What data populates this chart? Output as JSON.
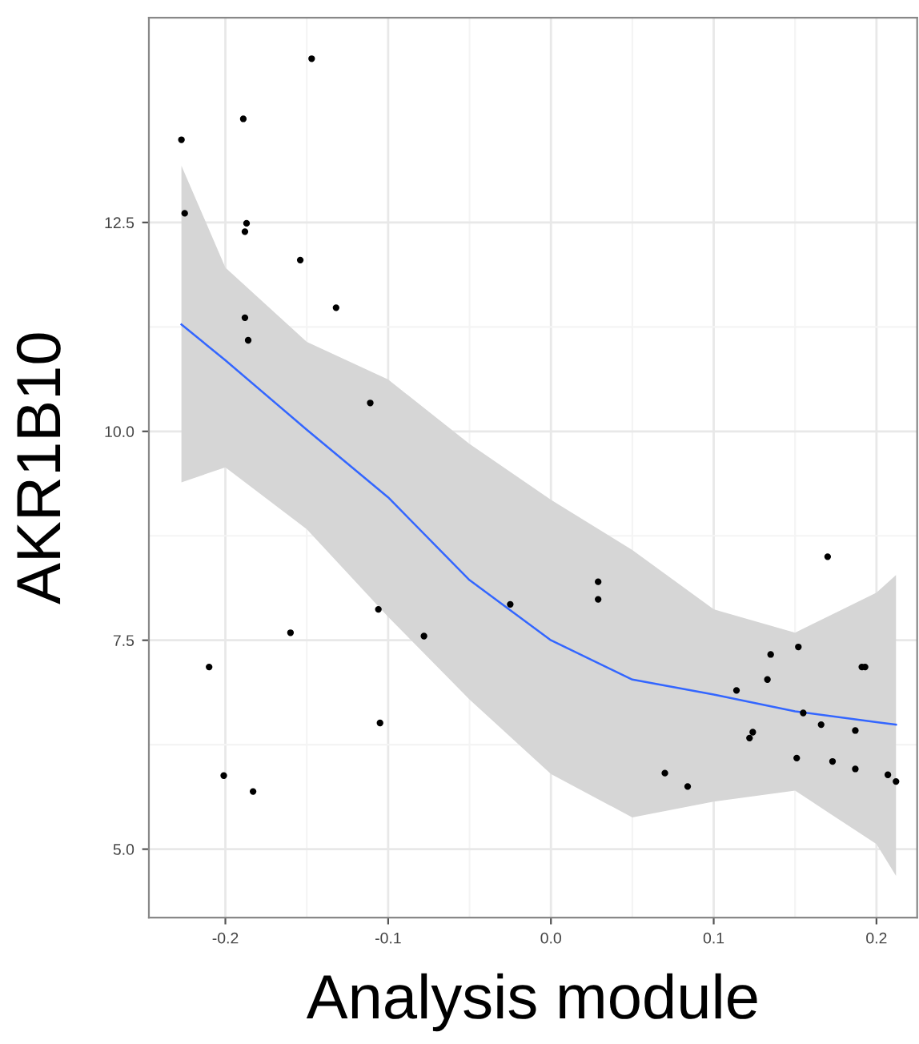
{
  "chart_data": {
    "type": "scatter",
    "xlabel": "Analysis module",
    "ylabel": "AKR1B10",
    "xlim": [
      -0.247,
      0.225
    ],
    "ylim": [
      4.18,
      14.95
    ],
    "xticks": [
      {
        "value": -0.2,
        "label": "-0.2"
      },
      {
        "value": -0.1,
        "label": "-0.1"
      },
      {
        "value": 0.0,
        "label": "0.0"
      },
      {
        "value": 0.1,
        "label": "0.1"
      },
      {
        "value": 0.2,
        "label": "0.2"
      }
    ],
    "yticks": [
      {
        "value": 5.0,
        "label": "5.0"
      },
      {
        "value": 7.5,
        "label": "7.5"
      },
      {
        "value": 10.0,
        "label": "10.0"
      },
      {
        "value": 12.5,
        "label": "12.5"
      }
    ],
    "grid": true,
    "marker": "circle",
    "series": [
      {
        "color": "#000000",
        "x": [
          -0.227,
          -0.225,
          -0.189,
          -0.187,
          -0.188,
          -0.188,
          -0.186,
          -0.147,
          -0.154,
          -0.132,
          -0.111,
          -0.21,
          -0.201,
          -0.183,
          -0.16,
          -0.106,
          -0.105,
          -0.078,
          -0.025,
          0.029,
          0.029,
          0.07,
          0.084,
          0.114,
          0.122,
          0.124,
          0.133,
          0.135,
          0.151,
          0.152,
          0.155,
          0.166,
          0.17,
          0.173,
          0.187,
          0.187,
          0.191,
          0.193,
          0.207,
          0.212
        ],
        "values": [
          13.49,
          12.61,
          13.74,
          12.49,
          12.39,
          11.36,
          11.09,
          14.46,
          12.05,
          11.48,
          10.34,
          7.18,
          5.88,
          5.69,
          7.59,
          7.87,
          6.51,
          7.55,
          7.93,
          8.2,
          7.99,
          5.91,
          5.75,
          6.9,
          6.33,
          6.4,
          7.03,
          7.33,
          6.09,
          7.42,
          6.63,
          6.49,
          8.5,
          6.05,
          6.42,
          5.96,
          7.18,
          7.18,
          5.89,
          5.81
        ]
      },
      {
        "type": "line",
        "color": "#3366ff",
        "marker": "none",
        "line_style": "solid",
        "x": [
          -0.227,
          -0.2,
          -0.15,
          -0.1,
          -0.05,
          0.0,
          0.05,
          0.1,
          0.15,
          0.2,
          0.212
        ],
        "values": [
          11.28,
          10.85,
          10.02,
          9.21,
          8.22,
          7.5,
          7.03,
          6.85,
          6.65,
          6.52,
          6.49
        ],
        "lower": [
          9.39,
          9.57,
          8.83,
          7.78,
          6.79,
          5.9,
          5.38,
          5.57,
          5.7,
          5.06,
          4.68
        ],
        "upper": [
          13.18,
          11.96,
          11.07,
          10.62,
          9.85,
          9.18,
          8.58,
          7.87,
          7.59,
          8.07,
          8.28
        ]
      }
    ]
  }
}
